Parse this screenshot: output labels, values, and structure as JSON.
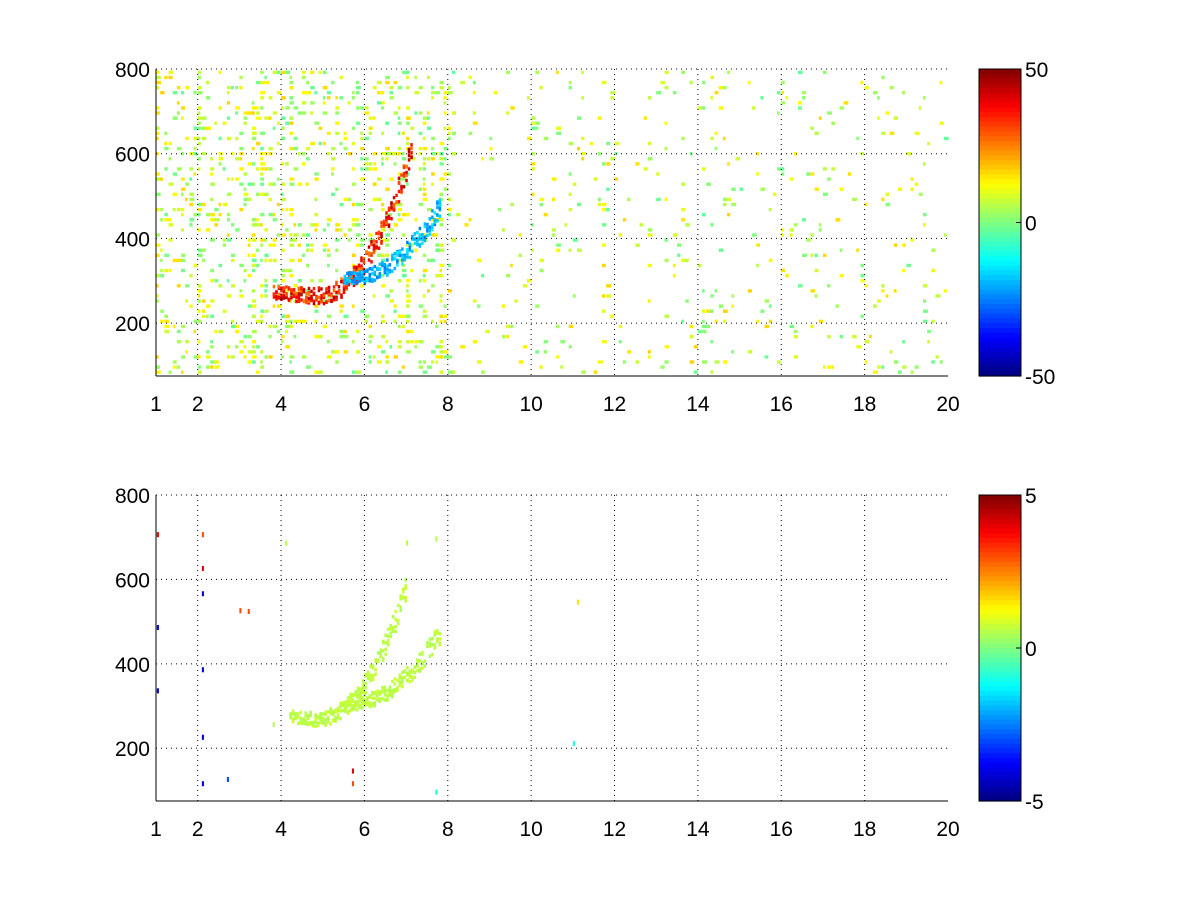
{
  "chart_data": [
    {
      "type": "heatmap",
      "title": "",
      "xlabel": "",
      "ylabel": "",
      "xlim": [
        1,
        20
      ],
      "ylim": [
        75,
        800
      ],
      "x_ticks": [
        1,
        2,
        4,
        6,
        8,
        10,
        12,
        14,
        16,
        18,
        20
      ],
      "x_tick_labels": [
        "1",
        "2",
        "4",
        "6",
        "8",
        "10",
        "12",
        "14",
        "16",
        "18",
        "20"
      ],
      "y_ticks": [
        200,
        400,
        600,
        800
      ],
      "y_tick_labels": [
        "200",
        "400",
        "600",
        "800"
      ],
      "grid": true,
      "grid_style": "dotted",
      "colormap": "jet",
      "colorbar": {
        "range": [
          -50,
          50
        ],
        "ticks": [
          50,
          0,
          -50
        ],
        "tick_labels": [
          "50",
          "0",
          "-50"
        ]
      },
      "features": [
        {
          "name": "",
          "shape": "arc",
          "x_range": [
            3.8,
            7.1
          ],
          "y_min": 260,
          "y_at_end": 600,
          "value_approx": 35
        },
        {
          "name": "",
          "shape": "arc",
          "x_range": [
            5.5,
            7.8
          ],
          "y_min": 300,
          "y_at_end": 470,
          "value_approx": -20
        }
      ],
      "background": "scattered vertical bands of values near 0 to +15, denser at x < 8, sparse at x > 8"
    },
    {
      "type": "heatmap",
      "title": "",
      "xlabel": "",
      "ylabel": "",
      "xlim": [
        1,
        20
      ],
      "ylim": [
        75,
        800
      ],
      "x_ticks": [
        1,
        2,
        4,
        6,
        8,
        10,
        12,
        14,
        16,
        18,
        20
      ],
      "x_tick_labels": [
        "1",
        "2",
        "4",
        "6",
        "8",
        "10",
        "12",
        "14",
        "16",
        "18",
        "20"
      ],
      "y_ticks": [
        200,
        400,
        600,
        800
      ],
      "y_tick_labels": [
        "200",
        "400",
        "600",
        "800"
      ],
      "grid": true,
      "grid_style": "dotted",
      "colormap": "jet",
      "colorbar": {
        "range": [
          -5,
          5
        ],
        "ticks": [
          5,
          0,
          -5
        ],
        "tick_labels": [
          "5",
          "0",
          "-5"
        ]
      },
      "features": [
        {
          "name": "",
          "shape": "arc",
          "x_range": [
            4.2,
            7.0
          ],
          "y_min": 265,
          "y_at_end": 580,
          "value_approx": 0.6
        },
        {
          "name": "",
          "shape": "arc",
          "x_range": [
            5.5,
            7.8
          ],
          "y_min": 300,
          "y_at_end": 470,
          "value_approx": 0.6
        }
      ],
      "background": "mostly empty; isolated outlier pixels near x = 1, x = 2.1 and x = 5.7"
    }
  ]
}
